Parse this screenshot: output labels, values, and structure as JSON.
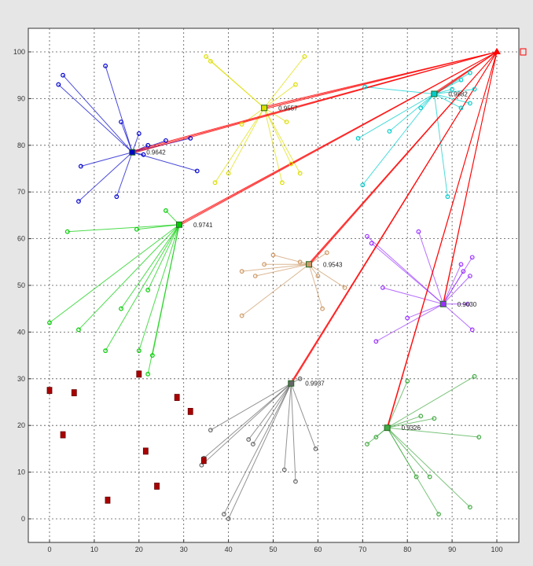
{
  "chart_data": {
    "type": "scatter",
    "title": "",
    "xlabel": "",
    "ylabel": "",
    "xlim": [
      -5,
      105
    ],
    "ylim": [
      -5,
      105
    ],
    "xticks": [
      0,
      10,
      20,
      30,
      40,
      50,
      60,
      70,
      80,
      90,
      100
    ],
    "yticks": [
      0,
      10,
      20,
      30,
      40,
      50,
      60,
      70,
      80,
      90,
      100
    ],
    "xtick_labels": [
      "0",
      "10",
      "20",
      "30",
      "40",
      "50",
      "60",
      "70",
      "80",
      "90",
      "100"
    ],
    "ytick_labels": [
      "0",
      "10",
      "20",
      "30",
      "40",
      "50",
      "60",
      "70",
      "80",
      "90",
      "100"
    ],
    "grid": true,
    "sink": {
      "x": 100,
      "y": 100,
      "color": "#ff0000"
    },
    "clusters": [
      {
        "color": "#0000cc",
        "head": {
          "x": 18.5,
          "y": 78.5
        },
        "label": "0.9642",
        "members": [
          [
            2,
            93
          ],
          [
            3,
            95
          ],
          [
            12.5,
            97
          ],
          [
            16,
            85
          ],
          [
            20,
            82.5
          ],
          [
            26,
            81
          ],
          [
            31.5,
            81.5
          ],
          [
            33,
            74.5
          ],
          [
            22,
            80
          ],
          [
            21,
            78
          ],
          [
            15,
            69
          ],
          [
            7,
            75.5
          ],
          [
            6.5,
            68
          ]
        ]
      },
      {
        "color": "#dddd00",
        "head": {
          "x": 48,
          "y": 88
        },
        "label": "0.9557",
        "members": [
          [
            35,
            99
          ],
          [
            36,
            98
          ],
          [
            57,
            99
          ],
          [
            55,
            93
          ],
          [
            43,
            84.5
          ],
          [
            53,
            85
          ],
          [
            54,
            76
          ],
          [
            37,
            72
          ],
          [
            40,
            74
          ],
          [
            56,
            74
          ],
          [
            52,
            72
          ]
        ]
      },
      {
        "color": "#00cccc",
        "head": {
          "x": 86,
          "y": 91
        },
        "label": "0.9882",
        "members": [
          [
            70.5,
            92.5
          ],
          [
            76,
            83
          ],
          [
            69,
            81.5
          ],
          [
            70,
            71.5
          ],
          [
            89,
            69
          ],
          [
            92,
            94
          ],
          [
            95,
            92
          ],
          [
            94,
            89
          ],
          [
            92,
            88
          ],
          [
            94,
            95.5
          ],
          [
            83,
            88
          ],
          [
            90,
            92
          ]
        ]
      },
      {
        "color": "#00cc00",
        "head": {
          "x": 29,
          "y": 63
        },
        "label": "0.9741",
        "members": [
          [
            26,
            66
          ],
          [
            4,
            61.5
          ],
          [
            19.5,
            62
          ],
          [
            0,
            42
          ],
          [
            6.5,
            40.5
          ],
          [
            12.5,
            36
          ],
          [
            16,
            45
          ],
          [
            22,
            49
          ],
          [
            20,
            36
          ],
          [
            23,
            35
          ],
          [
            22,
            31
          ]
        ]
      },
      {
        "color": "#cc9966",
        "head": {
          "x": 58,
          "y": 54.5
        },
        "label": "0.9543",
        "members": [
          [
            43,
            53
          ],
          [
            46,
            52
          ],
          [
            48,
            54.5
          ],
          [
            50,
            56.5
          ],
          [
            56,
            55
          ],
          [
            60,
            52
          ],
          [
            61,
            45
          ],
          [
            66,
            49.5
          ],
          [
            43,
            43.5
          ],
          [
            62,
            57
          ]
        ]
      },
      {
        "color": "#9933ff",
        "head": {
          "x": 88,
          "y": 46
        },
        "label": "0.9630",
        "members": [
          [
            71,
            60.5
          ],
          [
            72,
            59
          ],
          [
            82.5,
            61.5
          ],
          [
            92,
            54.5
          ],
          [
            92.5,
            53
          ],
          [
            94.5,
            56
          ],
          [
            94,
            52
          ],
          [
            93.5,
            46
          ],
          [
            94.5,
            40.5
          ],
          [
            80,
            43
          ],
          [
            73,
            38
          ],
          [
            74.5,
            49.5
          ]
        ]
      },
      {
        "color": "#666666",
        "head": {
          "x": 54,
          "y": 29
        },
        "label": "0.9937",
        "members": [
          [
            36,
            19
          ],
          [
            34,
            11.5
          ],
          [
            34.5,
            13
          ],
          [
            44.5,
            17
          ],
          [
            45.5,
            16
          ],
          [
            52.5,
            10.5
          ],
          [
            55,
            8
          ],
          [
            59.5,
            15
          ],
          [
            39,
            1
          ],
          [
            40,
            0
          ],
          [
            56,
            30
          ]
        ]
      },
      {
        "color": "#44aa44",
        "head": {
          "x": 75.5,
          "y": 19.5
        },
        "label": "0.9326",
        "members": [
          [
            71,
            16
          ],
          [
            80,
            29.5
          ],
          [
            95,
            30.5
          ],
          [
            83,
            22
          ],
          [
            86,
            21.5
          ],
          [
            96,
            17.5
          ],
          [
            82,
            9
          ],
          [
            85,
            9
          ],
          [
            87,
            1
          ],
          [
            94,
            2.5
          ],
          [
            73,
            17.5
          ]
        ]
      }
    ],
    "isolated_nodes": [
      [
        0,
        27.5
      ],
      [
        3,
        18
      ],
      [
        5.5,
        27
      ],
      [
        13,
        4
      ],
      [
        20,
        31
      ],
      [
        21.5,
        14.5
      ],
      [
        24,
        7
      ],
      [
        28.5,
        26
      ],
      [
        31.5,
        23
      ],
      [
        34.5,
        12.5
      ]
    ]
  }
}
